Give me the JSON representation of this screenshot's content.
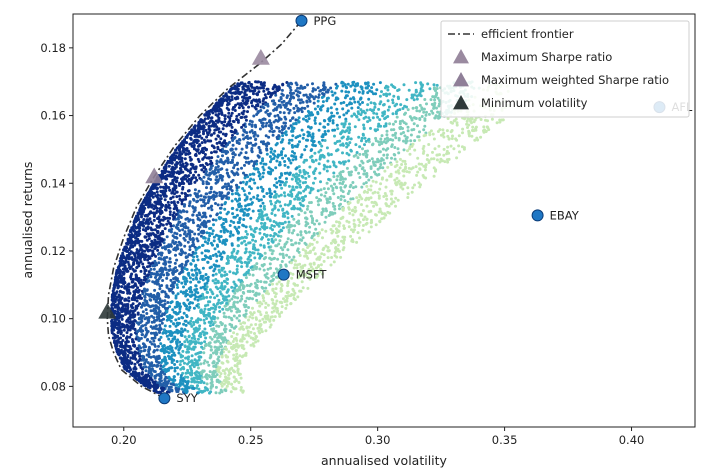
{
  "chart_data": {
    "type": "scatter",
    "title": "",
    "xlabel": "annualised volatility",
    "ylabel": "annualised returns",
    "xlim": [
      0.18,
      0.425
    ],
    "ylim": [
      0.068,
      0.19
    ],
    "x_ticks": [
      0.2,
      0.25,
      0.3,
      0.35,
      0.4
    ],
    "x_tick_labels": [
      "0.20",
      "0.25",
      "0.30",
      "0.35",
      "0.40"
    ],
    "y_ticks": [
      0.08,
      0.1,
      0.12,
      0.14,
      0.16,
      0.18
    ],
    "y_tick_labels": [
      "0.08",
      "0.10",
      "0.12",
      "0.14",
      "0.16",
      "0.18"
    ],
    "grid": false,
    "legend_position": "top-right",
    "legend": [
      {
        "label": "efficient frontier",
        "marker": "dashdot-line",
        "color": "#333333"
      },
      {
        "label": "Maximum Sharpe ratio",
        "marker": "triangle",
        "color": "#9a8aa0"
      },
      {
        "label": "Maximum weighted Sharpe ratio",
        "marker": "triangle",
        "color": "#8f7f98"
      },
      {
        "label": "Minimum volatility",
        "marker": "triangle",
        "color": "#2f3a3a"
      }
    ],
    "frontier": {
      "x": [
        0.216,
        0.207,
        0.199,
        0.196,
        0.194,
        0.1935,
        0.194,
        0.196,
        0.2,
        0.205,
        0.212,
        0.22,
        0.23,
        0.241,
        0.253,
        0.262,
        0.27
      ],
      "y": [
        0.0765,
        0.08,
        0.085,
        0.09,
        0.095,
        0.1,
        0.107,
        0.115,
        0.124,
        0.133,
        0.142,
        0.151,
        0.16,
        0.168,
        0.175,
        0.181,
        0.188
      ]
    },
    "assets": [
      {
        "name": "PPG",
        "x": 0.27,
        "y": 0.188
      },
      {
        "name": "AFL",
        "x": 0.411,
        "y": 0.1625
      },
      {
        "name": "EBAY",
        "x": 0.363,
        "y": 0.1305
      },
      {
        "name": "MSFT",
        "x": 0.263,
        "y": 0.113
      },
      {
        "name": "SYY",
        "x": 0.216,
        "y": 0.0765
      }
    ],
    "special_points": [
      {
        "name": "Maximum Sharpe ratio",
        "x": 0.254,
        "y": 0.177,
        "color": "#9a8aa0"
      },
      {
        "name": "Maximum weighted Sharpe ratio",
        "x": 0.212,
        "y": 0.142,
        "color": "#8f7f98"
      },
      {
        "name": "Minimum volatility",
        "x": 0.1935,
        "y": 0.102,
        "color": "#2f3a3a"
      }
    ],
    "portfolio_cloud": {
      "description_colormap": "YlGnBu (high Sharpe = dark blue, low Sharpe = light green)",
      "colors": [
        "#0c2c84",
        "#225ea8",
        "#1d91c0",
        "#41b6c4",
        "#7fcdbb",
        "#c7e9b4"
      ]
    }
  }
}
